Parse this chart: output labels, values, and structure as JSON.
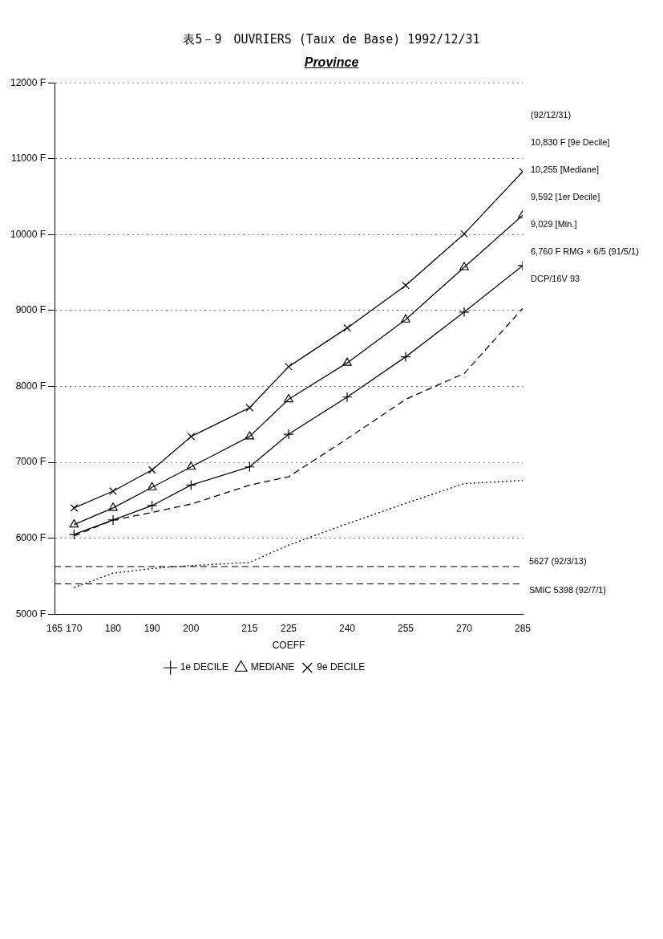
{
  "chart_data": {
    "type": "line",
    "title": "表5－9　OUVRIERS (Taux de Base) 1992/12/31",
    "subtitle": "Province",
    "xlabel": "COEFF",
    "x": [
      170,
      180,
      190,
      200,
      215,
      225,
      240,
      255,
      270,
      285
    ],
    "xlim": [
      165,
      285
    ],
    "xticks": [
      165,
      170,
      180,
      190,
      200,
      215,
      225,
      240,
      255,
      270,
      285
    ],
    "ylim": [
      5000,
      12000
    ],
    "yticks": [
      {
        "value": 5000,
        "label": "5000 F"
      },
      {
        "value": 6000,
        "label": "6000 F"
      },
      {
        "value": 7000,
        "label": "7000 F"
      },
      {
        "value": 8000,
        "label": "8000 F"
      },
      {
        "value": 9000,
        "label": "9000 F"
      },
      {
        "value": 10000,
        "label": "10000 F"
      },
      {
        "value": 11000,
        "label": "11000 F"
      },
      {
        "value": 12000,
        "label": "12000 F"
      }
    ],
    "grid": "y",
    "legend": "bottom",
    "series": [
      {
        "name": "1e DECILE",
        "color": "#000000",
        "marker": "cross",
        "line_style": "solid",
        "values": [
          6050,
          6240,
          6430,
          6700,
          6940,
          7370,
          7860,
          8390,
          8980,
          9592
        ]
      },
      {
        "name": "MEDIANE",
        "color": "#000000",
        "marker": "triangle",
        "line_style": "solid",
        "values": [
          6180,
          6400,
          6670,
          6940,
          7340,
          7830,
          8310,
          8880,
          9570,
          10255
        ]
      },
      {
        "name": "9e DECILE",
        "color": "#000000",
        "marker": "cross",
        "line_style": "solid",
        "values": [
          6400,
          6620,
          6900,
          7340,
          7720,
          8260,
          8770,
          9330,
          10010,
          10830
        ]
      },
      {
        "color": "#000000",
        "marker": "none",
        "line_style": "dashed",
        "values": [
          6030,
          6240,
          6340,
          6450,
          6700,
          6810,
          7310,
          7830,
          8170,
          9029
        ]
      },
      {
        "color": "#000000",
        "marker": "none",
        "line_style": "dotted",
        "values": [
          5350,
          5540,
          5600,
          5640,
          5680,
          5910,
          6190,
          6460,
          6720,
          6760
        ]
      }
    ],
    "ref_lines": [
      {
        "axis": "y",
        "value": 5627,
        "label": "5627 (92/3/13)",
        "color": "#000000",
        "line_style": "dashed"
      },
      {
        "axis": "y",
        "value": 5398,
        "label": "SMIC 5398 (92/7/1)",
        "color": "#000000",
        "line_style": "dashed"
      }
    ],
    "annotations": [
      "(92/12/31)",
      "10,830 F [9e Decile]",
      "10,255 [Mediane]",
      "9,592 [1er Decile]",
      "9,029 [Min.]",
      "6,760 F RMG × 6/5 (91/5/1)",
      "DCP/16V 93"
    ]
  }
}
